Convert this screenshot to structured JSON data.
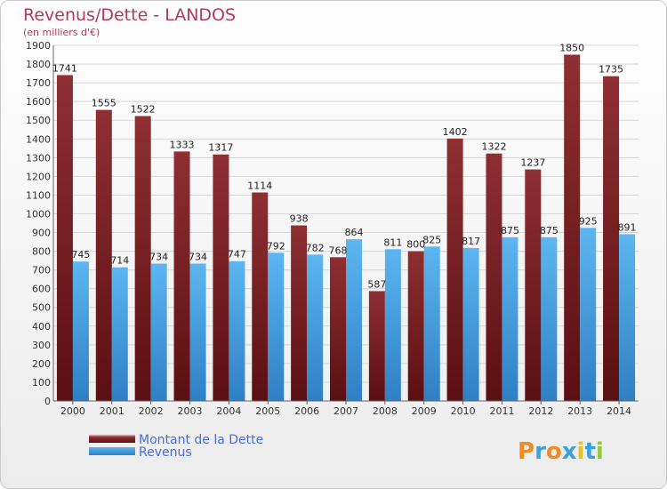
{
  "chart_data": {
    "type": "bar",
    "title": "Revenus/Dette - LANDOS",
    "subtitle": "(en milliers d'€)",
    "categories": [
      "2000",
      "2001",
      "2002",
      "2003",
      "2004",
      "2005",
      "2006",
      "2007",
      "2008",
      "2009",
      "2010",
      "2011",
      "2012",
      "2013",
      "2014"
    ],
    "series": [
      {
        "name": "Montant de la Dette",
        "color": "#7a1f22",
        "values": [
          1741,
          1555,
          1522,
          1333,
          1317,
          1114,
          938,
          768,
          587,
          800,
          1402,
          1322,
          1237,
          1850,
          1735
        ]
      },
      {
        "name": "Revenus",
        "color": "#4aa8e8",
        "values": [
          745,
          714,
          734,
          734,
          747,
          792,
          782,
          864,
          811,
          825,
          817,
          875,
          875,
          925,
          891
        ]
      }
    ],
    "ylim": [
      0,
      1900
    ],
    "yticks": [
      0,
      100,
      200,
      300,
      400,
      500,
      600,
      700,
      800,
      900,
      1000,
      1100,
      1200,
      1300,
      1400,
      1500,
      1600,
      1700,
      1800,
      1900
    ],
    "grid": true,
    "legend_position": "bottom-left"
  },
  "brand": {
    "letters": [
      "P",
      "r",
      "o",
      "x",
      "i",
      "t",
      "i"
    ],
    "colors": [
      "#f08a24",
      "#3aa0e0",
      "#f08a24",
      "#3aa0e0",
      "#e8c020",
      "#3aa0e0",
      "#9ac43c"
    ]
  }
}
